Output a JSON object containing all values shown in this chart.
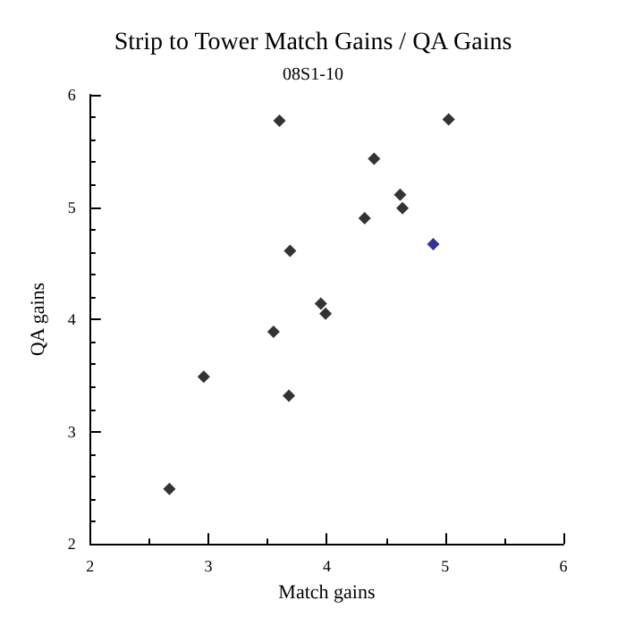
{
  "chart_data": {
    "type": "scatter",
    "title": "Strip to Tower Match Gains / QA Gains",
    "subtitle": "08S1-10",
    "xlabel": "Match gains",
    "ylabel": "QA gains",
    "xlim": [
      2,
      6
    ],
    "ylim": [
      2,
      6
    ],
    "xticks": [
      2,
      3,
      4,
      5,
      6
    ],
    "yticks": [
      2,
      3,
      4,
      5,
      6
    ],
    "grid": false,
    "marker": "diamond",
    "series": [
      {
        "color": "#000000",
        "x": [
          2.67,
          2.96,
          3.55,
          3.68,
          3.99,
          3.95,
          3.69,
          3.6,
          4.4,
          4.32,
          4.62,
          4.64,
          5.03
        ],
        "values": [
          2.49,
          3.49,
          3.89,
          3.32,
          4.05,
          4.14,
          4.61,
          5.77,
          5.43,
          4.9,
          5.11,
          4.99,
          5.78
        ]
      },
      {
        "color": "#000080",
        "x": [
          4.9
        ],
        "values": [
          4.67
        ]
      }
    ]
  }
}
